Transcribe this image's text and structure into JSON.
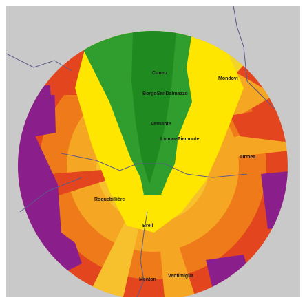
{
  "map": {
    "colors": {
      "background": "#c9c9c9",
      "band_inner": "#f2d42a",
      "band_mid": "#f5a623",
      "band_outer": "#ef7a1a",
      "band_edge": "#e3461f",
      "no_coverage": "#8a1f8c",
      "cone": "#2f9e2f",
      "cone_dark": "#1f8a1f",
      "highlight": "#ffe600",
      "border_lines": "#5a5a8a"
    },
    "towns": [
      {
        "id": "cuneo",
        "name": "Cuneo"
      },
      {
        "id": "mondovi",
        "name": "Mondovì"
      },
      {
        "id": "borgo",
        "name": "BorgoSanDalmazzo"
      },
      {
        "id": "vernante",
        "name": "Vernante"
      },
      {
        "id": "limone",
        "name": "LimonePiemonte"
      },
      {
        "id": "ormea",
        "name": "Ormea"
      },
      {
        "id": "roquebilliere",
        "name": "Roquebillière"
      },
      {
        "id": "breil",
        "name": "Breil"
      },
      {
        "id": "menton",
        "name": "Menton"
      },
      {
        "id": "ventimiglia",
        "name": "Ventimiglia"
      }
    ]
  }
}
